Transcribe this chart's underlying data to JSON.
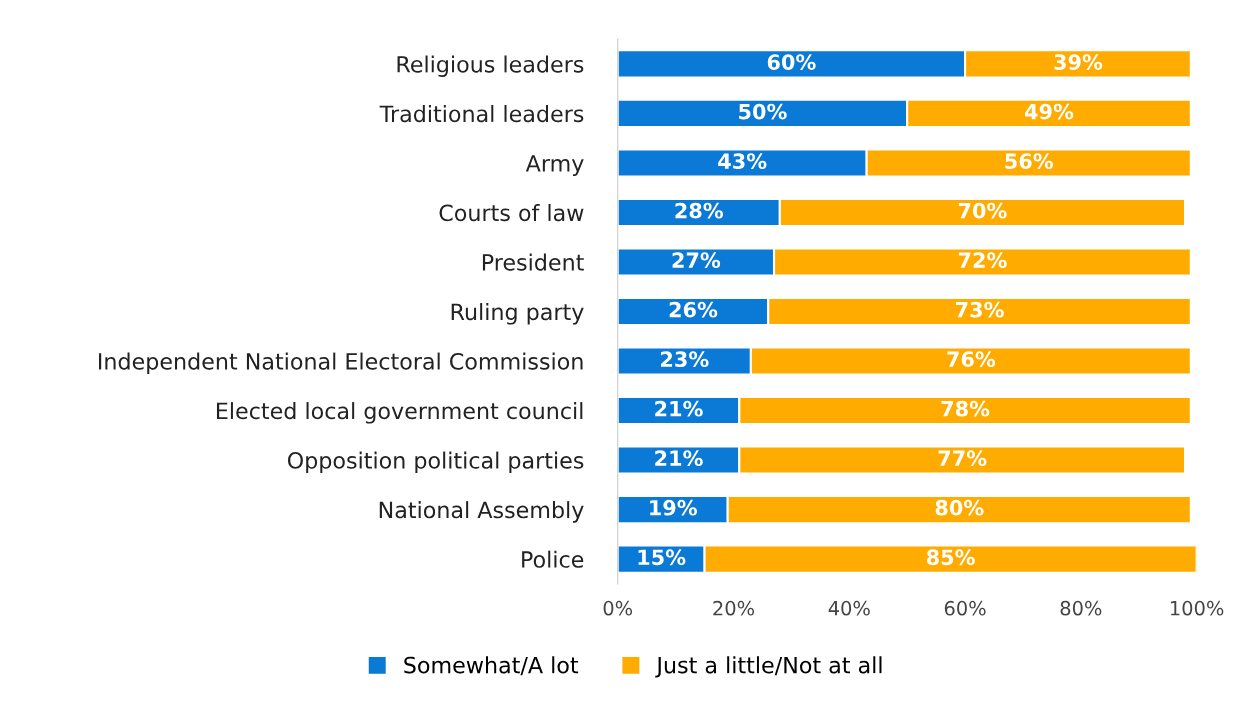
{
  "chart_data": {
    "type": "bar",
    "orientation": "horizontal",
    "stacked": true,
    "categories": [
      "Religious leaders",
      "Traditional leaders",
      "Army",
      "Courts of law",
      "President",
      "Ruling party",
      "Independent National Electoral Commission",
      "Elected local government council",
      "Opposition political parties",
      "National Assembly",
      "Police"
    ],
    "series": [
      {
        "name": "Somewhat/A lot",
        "color": "#0a7ad6",
        "values": [
          60,
          50,
          43,
          28,
          27,
          26,
          23,
          21,
          21,
          19,
          15
        ],
        "value_labels": [
          "60%",
          "50%",
          "43%",
          "28%",
          "27%",
          "26%",
          "23%",
          "21%",
          "21%",
          "19%",
          "15%"
        ]
      },
      {
        "name": "Just a little/Not at all",
        "color": "#ffab00",
        "values": [
          39,
          49,
          56,
          70,
          72,
          73,
          76,
          78,
          77,
          80,
          85
        ],
        "value_labels": [
          "39%",
          "49%",
          "56%",
          "70%",
          "72%",
          "73%",
          "76%",
          "78%",
          "77%",
          "80%",
          "85%"
        ]
      }
    ],
    "xlim": [
      0,
      100
    ],
    "xticks": [
      {
        "value": 0,
        "label": "0%"
      },
      {
        "value": 20,
        "label": "20%"
      },
      {
        "value": 40,
        "label": "40%"
      },
      {
        "value": 60,
        "label": "60%"
      },
      {
        "value": 80,
        "label": "80%"
      },
      {
        "value": 100,
        "label": "100%"
      }
    ],
    "grid": false,
    "legend": "bottom"
  }
}
